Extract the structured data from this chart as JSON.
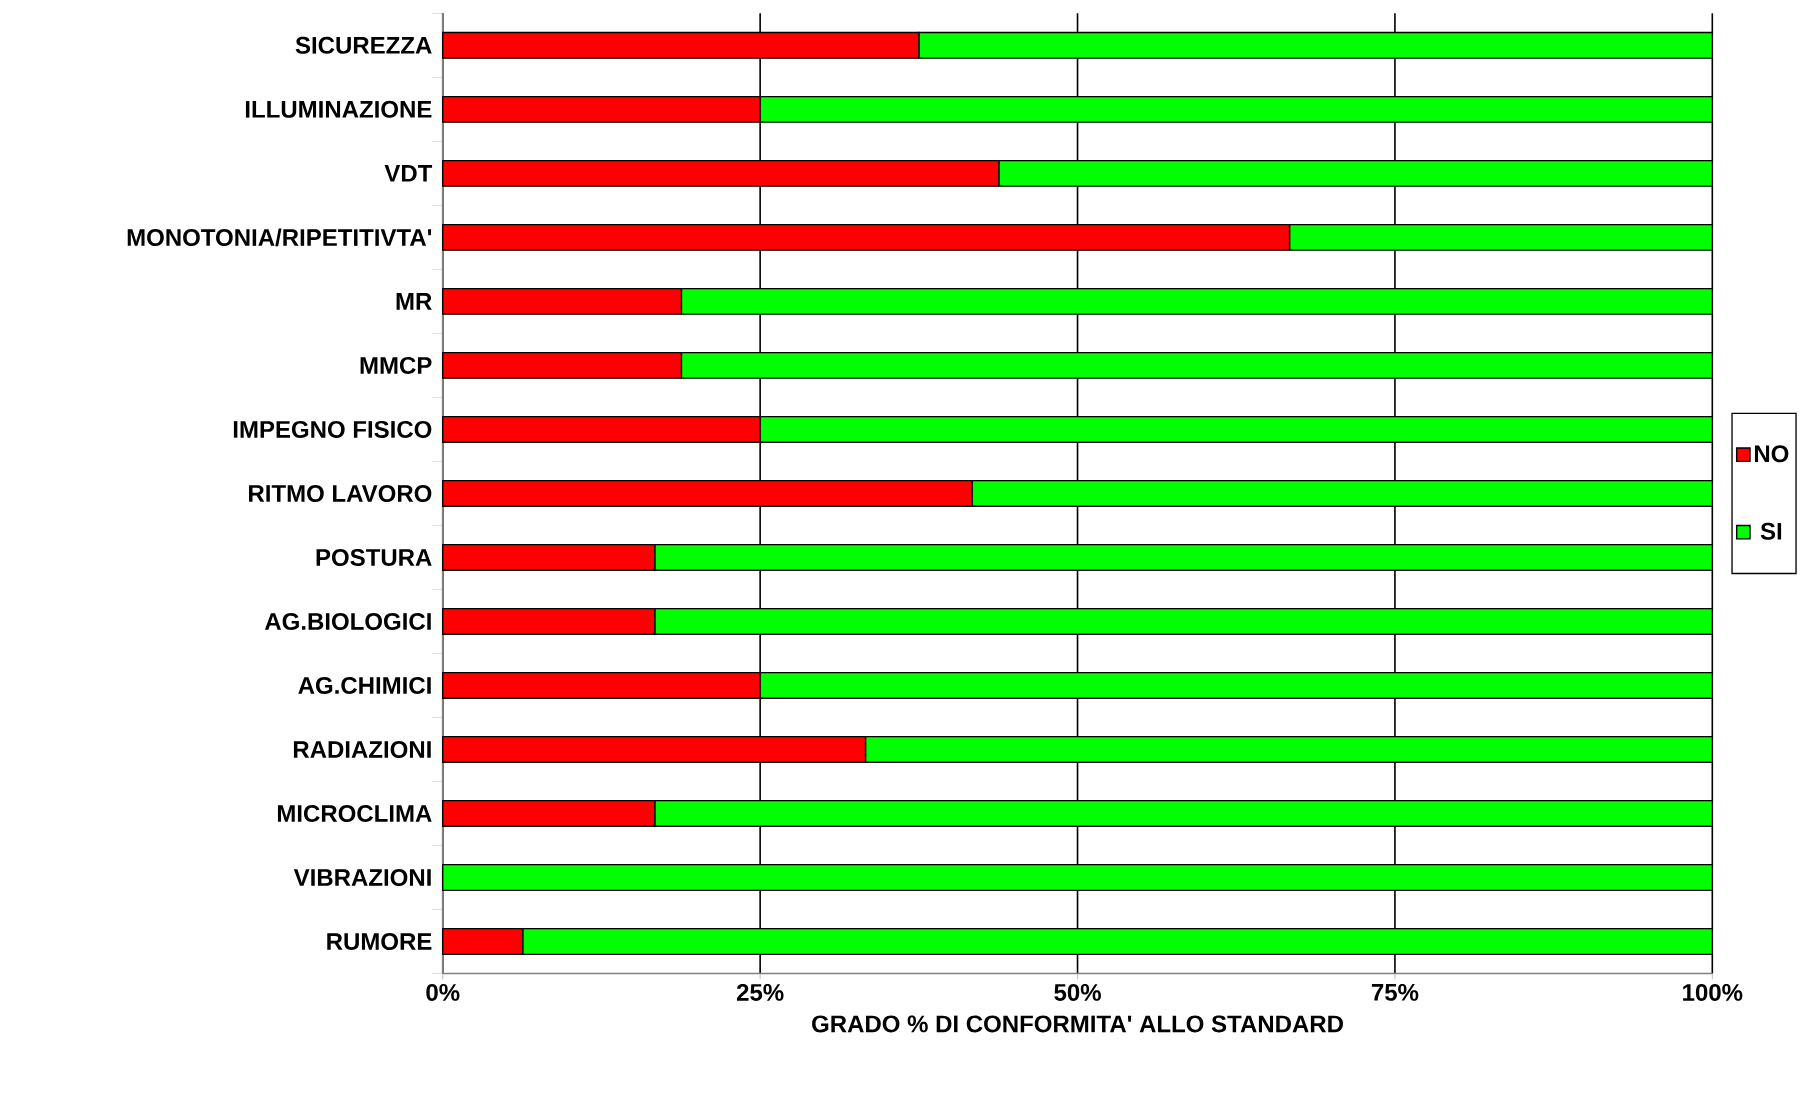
{
  "chart_data": {
    "type": "bar",
    "orientation": "horizontal",
    "stacked": true,
    "xlabel": "GRADO % DI CONFORMITA' ALLO STANDARD",
    "categories": [
      "SICUREZZA",
      "ILLUMINAZIONE",
      "VDT",
      "MONOTONIA/RIPETITIVTA'",
      "MR",
      "MMCP",
      "IMPEGNO FISICO",
      "RITMO LAVORO",
      "POSTURA",
      "AG.BIOLOGICI",
      "AG.CHIMICI",
      "RADIAZIONI",
      "MICROCLIMA",
      "VIBRAZIONI",
      "RUMORE"
    ],
    "series": [
      {
        "name": "NO",
        "color": "#ff0000",
        "values": [
          37.5,
          25,
          43.8,
          66.7,
          18.8,
          18.8,
          25,
          41.7,
          16.7,
          16.7,
          25,
          33.3,
          16.7,
          0,
          6.3
        ]
      },
      {
        "name": "SI",
        "color": "#00ff00",
        "values": [
          62.5,
          75,
          56.2,
          33.3,
          81.2,
          81.2,
          75,
          58.3,
          83.3,
          83.3,
          75,
          66.7,
          83.3,
          100,
          93.7
        ]
      }
    ],
    "xlim": [
      0,
      100
    ],
    "xticks": [
      {
        "value": 0,
        "label": "0%"
      },
      {
        "value": 25,
        "label": "25%"
      },
      {
        "value": 50,
        "label": "50%"
      },
      {
        "value": 75,
        "label": "75%"
      },
      {
        "value": 100,
        "label": "100%"
      }
    ],
    "grid": "x",
    "legend": "right"
  }
}
